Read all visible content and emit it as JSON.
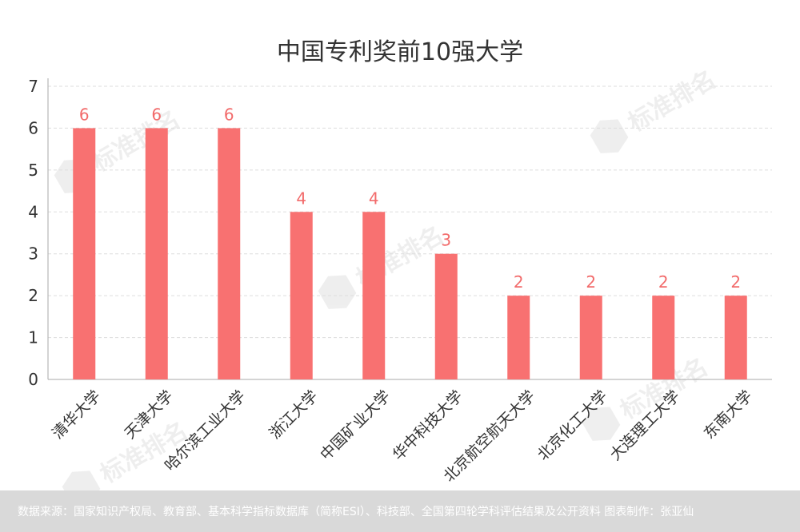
{
  "title": "中国专利奖前10强大学",
  "footer": "数据来源：国家知识产权局、教育部、基本科学指标数据库（简称ESI）、科技部、全国第四轮学科评估结果及公开资料  图表制作：张亚仙",
  "watermark_text": "标准排名",
  "colors": {
    "bar": "#f87171",
    "label": "#f26b6b",
    "axis_text": "#333333",
    "grid": "#dddddd",
    "footer_bg": "#d9d9d9"
  },
  "chart_data": {
    "type": "bar",
    "title": "中国专利奖前10强大学",
    "categories": [
      "清华大学",
      "天津大学",
      "哈尔滨工业大学",
      "浙江大学",
      "中国矿业大学",
      "华中科技大学",
      "北京航空航天大学",
      "北京化工大学",
      "大连理工大学",
      "东南大学"
    ],
    "values": [
      6,
      6,
      6,
      4,
      4,
      3,
      2,
      2,
      2,
      2
    ],
    "data_labels": [
      "6",
      "6",
      "6",
      "4",
      "4",
      "3",
      "2",
      "2",
      "2",
      "2"
    ],
    "y_ticks": [
      "0",
      "1",
      "2",
      "3",
      "4",
      "5",
      "6",
      "7"
    ],
    "ylim": [
      0,
      7
    ],
    "grid": true,
    "xlabel": "",
    "ylabel": ""
  }
}
